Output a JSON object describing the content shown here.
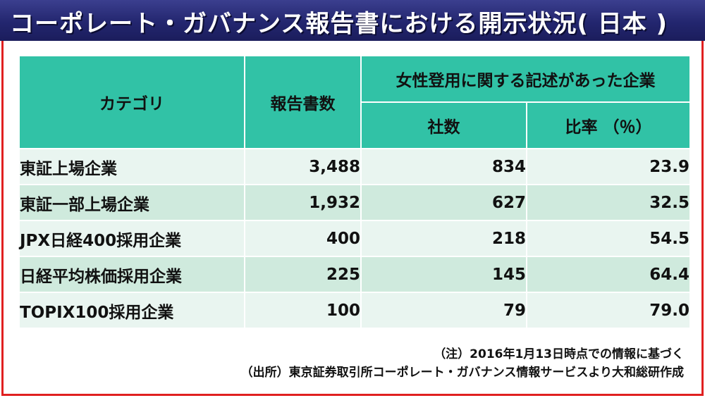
{
  "title": "コーポレート・ガバナンス報告書における開示状況( 日本 )",
  "table": {
    "headers": {
      "category": "カテゴリ",
      "reports": "報告書数",
      "group": "女性登用に関する記述があった企業",
      "companies": "社数",
      "ratio": "比率 （％）"
    },
    "rows": [
      {
        "category": "東証上場企業",
        "reports": "3,488",
        "companies": "834",
        "ratio": "23.9"
      },
      {
        "category": "東証一部上場企業",
        "reports": "1,932",
        "companies": "627",
        "ratio": "32.5"
      },
      {
        "category": "JPX日経400採用企業",
        "reports": "400",
        "companies": "218",
        "ratio": "54.5"
      },
      {
        "category": "日経平均株価採用企業",
        "reports": "225",
        "companies": "145",
        "ratio": "64.4"
      },
      {
        "category": "TOPIX100採用企業",
        "reports": "100",
        "companies": "79",
        "ratio": "79.0"
      }
    ]
  },
  "notes": {
    "note": "（注）2016年1月13日時点での情報に基づく",
    "source": "（出所）東京証券取引所コーポレート・ガバナンス情報サービスより大和総研作成"
  },
  "colors": {
    "title_bg": "#23266f",
    "header_bg": "#31c2a6",
    "row_light": "#e9f5f0",
    "row_dark": "#cfeadd",
    "border": "#e02020"
  }
}
